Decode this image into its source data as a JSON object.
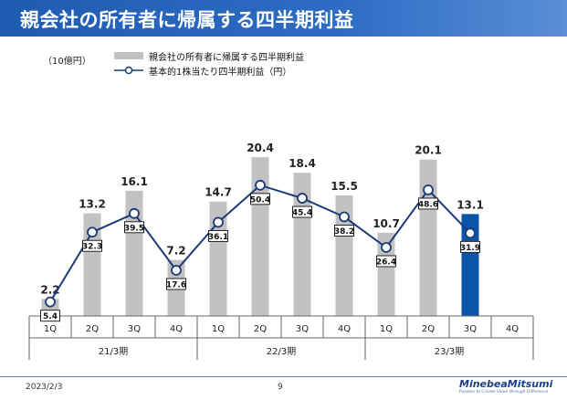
{
  "header": {
    "title": "親会社の所有者に帰属する四半期利益"
  },
  "colors": {
    "bar": "#c2c2c2",
    "bar_highlight": "#0a55a8",
    "line": "#1a3a78",
    "header": "#2e6cc4"
  },
  "chart_data": {
    "type": "bar",
    "unit_label": "（10億円）",
    "categories": [
      "1Q",
      "2Q",
      "3Q",
      "4Q",
      "1Q",
      "2Q",
      "3Q",
      "4Q",
      "1Q",
      "2Q",
      "3Q",
      "4Q"
    ],
    "groups": [
      {
        "label": "21/3期",
        "span": 4
      },
      {
        "label": "22/3期",
        "span": 4
      },
      {
        "label": "23/3期",
        "span": 4
      }
    ],
    "series": [
      {
        "name": "親会社の所有者に帰属する四半期利益",
        "kind": "bar",
        "values": [
          2.2,
          13.2,
          16.1,
          7.2,
          14.7,
          20.4,
          18.4,
          15.5,
          10.7,
          20.1,
          13.1,
          null
        ],
        "labels": [
          "2.2",
          "13.2",
          "16.1",
          "7.2",
          "14.7",
          "20.4",
          "18.4",
          "15.5",
          "10.7",
          "20.1",
          "13.1",
          ""
        ],
        "highlight_index": 10
      },
      {
        "name": "基本的1株当たり四半期利益（円）",
        "kind": "line",
        "values": [
          5.4,
          32.3,
          39.5,
          17.6,
          36.1,
          50.4,
          45.4,
          38.2,
          26.4,
          48.6,
          31.9,
          null
        ],
        "labels": [
          "5.4",
          "32.3",
          "39.5",
          "17.6",
          "36.1",
          "50.4",
          "45.4",
          "38.2",
          "26.4",
          "48.6",
          "31.9",
          ""
        ]
      }
    ],
    "ylim": [
      0,
      23
    ],
    "y2lim": [
      0,
      69
    ],
    "grid": false,
    "legend": "top-left"
  },
  "footer": {
    "date": "2023/2/3",
    "page": "9",
    "company": "MinebeaMitsumi",
    "tagline": "Passion to Create Value through Difference"
  }
}
